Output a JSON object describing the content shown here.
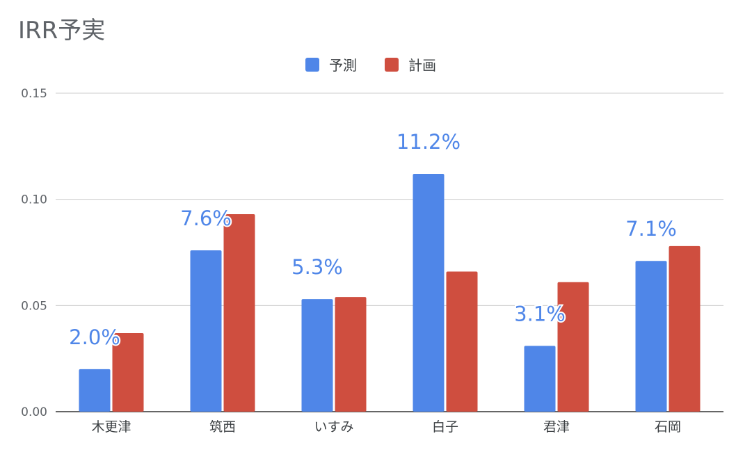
{
  "chart_data": {
    "type": "bar",
    "title": "IRR予実",
    "categories": [
      "木更津",
      "筑西",
      "いすみ",
      "白子",
      "君津",
      "石岡"
    ],
    "series": [
      {
        "name": "予測",
        "color": "#4f86e8",
        "values": [
          0.02,
          0.076,
          0.053,
          0.112,
          0.031,
          0.071
        ]
      },
      {
        "name": "計画",
        "color": "#cf4e3f",
        "values": [
          0.037,
          0.093,
          0.054,
          0.066,
          0.061,
          0.078
        ]
      }
    ],
    "data_labels": [
      "2.0%",
      "7.6%",
      "5.3%",
      "11.2%",
      "3.1%",
      "7.1%"
    ],
    "yticks": [
      "0.00",
      "0.05",
      "0.10",
      "0.15"
    ],
    "ylim": [
      0,
      0.15
    ],
    "grid": true,
    "legend_position": "top"
  }
}
